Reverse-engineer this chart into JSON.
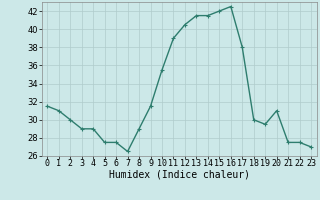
{
  "x": [
    0,
    1,
    2,
    3,
    4,
    5,
    6,
    7,
    8,
    9,
    10,
    11,
    12,
    13,
    14,
    15,
    16,
    17,
    18,
    19,
    20,
    21,
    22,
    23
  ],
  "y": [
    31.5,
    31.0,
    30.0,
    29.0,
    29.0,
    27.5,
    27.5,
    26.5,
    29.0,
    31.5,
    35.5,
    39.0,
    40.5,
    41.5,
    41.5,
    42.0,
    42.5,
    38.0,
    30.0,
    29.5,
    31.0,
    27.5,
    27.5,
    27.0
  ],
  "line_color": "#2e7d6e",
  "marker": "+",
  "marker_size": 3,
  "marker_linewidth": 0.8,
  "xlabel": "Humidex (Indice chaleur)",
  "ylim": [
    26,
    43
  ],
  "xlim": [
    -0.5,
    23.5
  ],
  "yticks": [
    26,
    28,
    30,
    32,
    34,
    36,
    38,
    40,
    42
  ],
  "xticks": [
    0,
    1,
    2,
    3,
    4,
    5,
    6,
    7,
    8,
    9,
    10,
    11,
    12,
    13,
    14,
    15,
    16,
    17,
    18,
    19,
    20,
    21,
    22,
    23
  ],
  "xtick_labels": [
    "0",
    "1",
    "2",
    "3",
    "4",
    "5",
    "6",
    "7",
    "8",
    "9",
    "10",
    "11",
    "12",
    "13",
    "14",
    "15",
    "16",
    "17",
    "18",
    "19",
    "20",
    "21",
    "22",
    "23"
  ],
  "bg_color": "#cce8e8",
  "grid_color": "#b0cccc",
  "line_width": 1.0,
  "tick_fontsize": 6,
  "xlabel_fontsize": 7
}
